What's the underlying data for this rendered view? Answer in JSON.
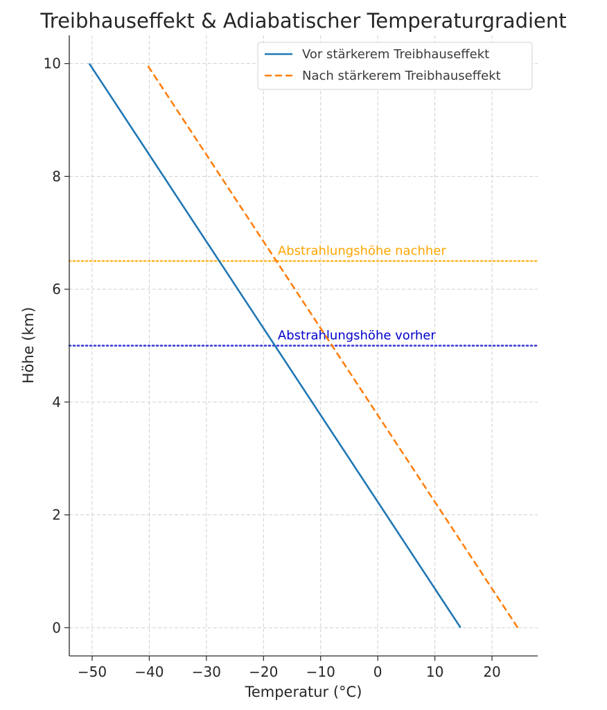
{
  "chart_data": {
    "type": "line",
    "title": "Treibhauseffekt & Adiabatischer Temperaturgradient",
    "xlabel": "Temperatur (°C)",
    "ylabel": "Höhe (km)",
    "xlim": [
      -54,
      28
    ],
    "ylim": [
      -0.5,
      10.5
    ],
    "xticks": [
      -50,
      -40,
      -30,
      -20,
      -10,
      0,
      10,
      20
    ],
    "xtick_labels": [
      "−50",
      "−40",
      "−30",
      "−20",
      "−10",
      "0",
      "10",
      "20"
    ],
    "yticks": [
      0,
      2,
      4,
      6,
      8,
      10
    ],
    "ytick_labels": [
      "0",
      "2",
      "4",
      "6",
      "8",
      "10"
    ],
    "grid": true,
    "legend_position": "top-right",
    "series": [
      {
        "name": "Vor stärkerem Treibhauseffekt",
        "color": "#1f77b4",
        "style": "solid",
        "x": [
          14.5,
          -50.5
        ],
        "y": [
          0,
          10
        ]
      },
      {
        "name": "Nach stärkerem Treibhauseffekt",
        "color": "#ff7f0e",
        "style": "dashed",
        "x": [
          24.5,
          -40.5
        ],
        "y": [
          0,
          10
        ]
      }
    ],
    "hlines": [
      {
        "label": "Abstrahlungshöhe nachher",
        "y": 6.5,
        "color": "#ffa500",
        "style": "dotted"
      },
      {
        "label": "Abstrahlungshöhe vorher",
        "y": 5,
        "color": "#0000cd",
        "style": "dotted"
      }
    ]
  }
}
